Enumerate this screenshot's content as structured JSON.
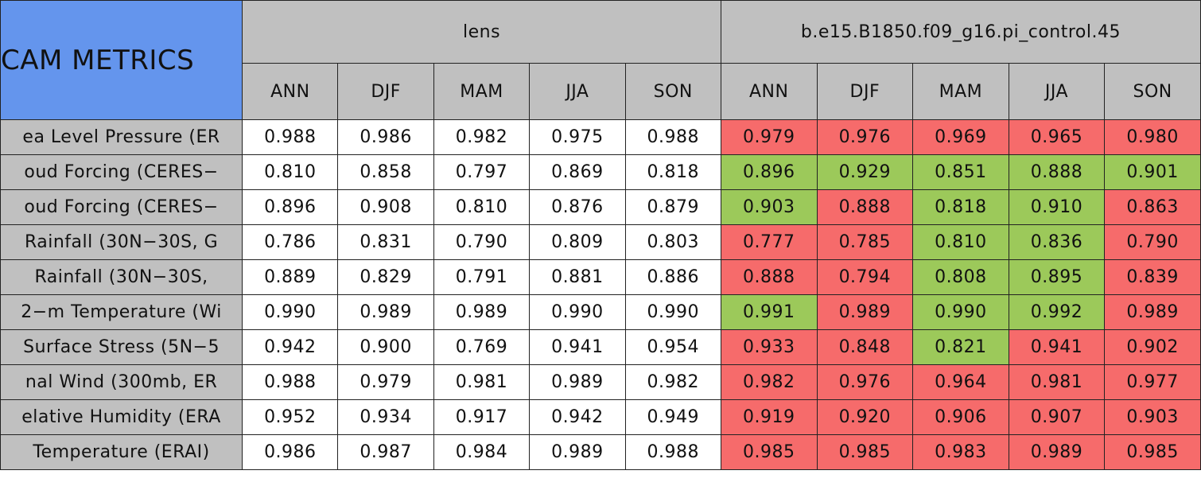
{
  "header": {
    "title": "CAM METRICS",
    "groups": [
      "lens",
      "b.e15.B1850.f09_g16.pi_control.45"
    ],
    "subheaders": [
      "ANN",
      "DJF",
      "MAM",
      "JJA",
      "SON",
      "ANN",
      "DJF",
      "MAM",
      "JJA",
      "SON"
    ]
  },
  "rows": [
    {
      "label": "ea Level Pressure (ER",
      "values": [
        "0.988",
        "0.986",
        "0.982",
        "0.975",
        "0.988",
        "0.979",
        "0.976",
        "0.969",
        "0.965",
        "0.980"
      ],
      "colors": [
        "#ffffff",
        "#ffffff",
        "#ffffff",
        "#ffffff",
        "#ffffff",
        "#f66b6b",
        "#f66b6b",
        "#f66b6b",
        "#f66b6b",
        "#f66b6b"
      ]
    },
    {
      "label": "oud Forcing (CERES−",
      "values": [
        "0.810",
        "0.858",
        "0.797",
        "0.869",
        "0.818",
        "0.896",
        "0.929",
        "0.851",
        "0.888",
        "0.901"
      ],
      "colors": [
        "#ffffff",
        "#ffffff",
        "#ffffff",
        "#ffffff",
        "#ffffff",
        "#9cc95a",
        "#9cc95a",
        "#9cc95a",
        "#9cc95a",
        "#9cc95a"
      ]
    },
    {
      "label": "oud Forcing (CERES−",
      "values": [
        "0.896",
        "0.908",
        "0.810",
        "0.876",
        "0.879",
        "0.903",
        "0.888",
        "0.818",
        "0.910",
        "0.863"
      ],
      "colors": [
        "#ffffff",
        "#ffffff",
        "#ffffff",
        "#ffffff",
        "#ffffff",
        "#9cc95a",
        "#f66b6b",
        "#9cc95a",
        "#9cc95a",
        "#f66b6b"
      ]
    },
    {
      "label": "Rainfall (30N−30S, G",
      "values": [
        "0.786",
        "0.831",
        "0.790",
        "0.809",
        "0.803",
        "0.777",
        "0.785",
        "0.810",
        "0.836",
        "0.790"
      ],
      "colors": [
        "#ffffff",
        "#ffffff",
        "#ffffff",
        "#ffffff",
        "#ffffff",
        "#f66b6b",
        "#f66b6b",
        "#9cc95a",
        "#9cc95a",
        "#f66b6b"
      ]
    },
    {
      "label": "Rainfall (30N−30S,",
      "values": [
        "0.889",
        "0.829",
        "0.791",
        "0.881",
        "0.886",
        "0.888",
        "0.794",
        "0.808",
        "0.895",
        "0.839"
      ],
      "colors": [
        "#ffffff",
        "#ffffff",
        "#ffffff",
        "#ffffff",
        "#ffffff",
        "#f66b6b",
        "#f66b6b",
        "#9cc95a",
        "#9cc95a",
        "#f66b6b"
      ]
    },
    {
      "label": "2−m Temperature (Wi",
      "values": [
        "0.990",
        "0.989",
        "0.989",
        "0.990",
        "0.990",
        "0.991",
        "0.989",
        "0.990",
        "0.992",
        "0.989"
      ],
      "colors": [
        "#ffffff",
        "#ffffff",
        "#ffffff",
        "#ffffff",
        "#ffffff",
        "#9cc95a",
        "#f66b6b",
        "#9cc95a",
        "#9cc95a",
        "#f66b6b"
      ]
    },
    {
      "label": "Surface Stress (5N−5",
      "values": [
        "0.942",
        "0.900",
        "0.769",
        "0.941",
        "0.954",
        "0.933",
        "0.848",
        "0.821",
        "0.941",
        "0.902"
      ],
      "colors": [
        "#ffffff",
        "#ffffff",
        "#ffffff",
        "#ffffff",
        "#ffffff",
        "#f66b6b",
        "#f66b6b",
        "#9cc95a",
        "#f66b6b",
        "#f66b6b"
      ]
    },
    {
      "label": "nal Wind (300mb, ER",
      "values": [
        "0.988",
        "0.979",
        "0.981",
        "0.989",
        "0.982",
        "0.982",
        "0.976",
        "0.964",
        "0.981",
        "0.977"
      ],
      "colors": [
        "#ffffff",
        "#ffffff",
        "#ffffff",
        "#ffffff",
        "#ffffff",
        "#f66b6b",
        "#f66b6b",
        "#f66b6b",
        "#f66b6b",
        "#f66b6b"
      ]
    },
    {
      "label": "elative Humidity (ERA",
      "values": [
        "0.952",
        "0.934",
        "0.917",
        "0.942",
        "0.949",
        "0.919",
        "0.920",
        "0.906",
        "0.907",
        "0.903"
      ],
      "colors": [
        "#ffffff",
        "#ffffff",
        "#ffffff",
        "#ffffff",
        "#ffffff",
        "#f66b6b",
        "#f66b6b",
        "#f66b6b",
        "#f66b6b",
        "#f66b6b"
      ]
    },
    {
      "label": "Temperature (ERAI)",
      "values": [
        "0.986",
        "0.987",
        "0.984",
        "0.989",
        "0.988",
        "0.985",
        "0.985",
        "0.983",
        "0.989",
        "0.985"
      ],
      "colors": [
        "#ffffff",
        "#ffffff",
        "#ffffff",
        "#ffffff",
        "#ffffff",
        "#f66b6b",
        "#f66b6b",
        "#f66b6b",
        "#f66b6b",
        "#f66b6b"
      ]
    }
  ]
}
